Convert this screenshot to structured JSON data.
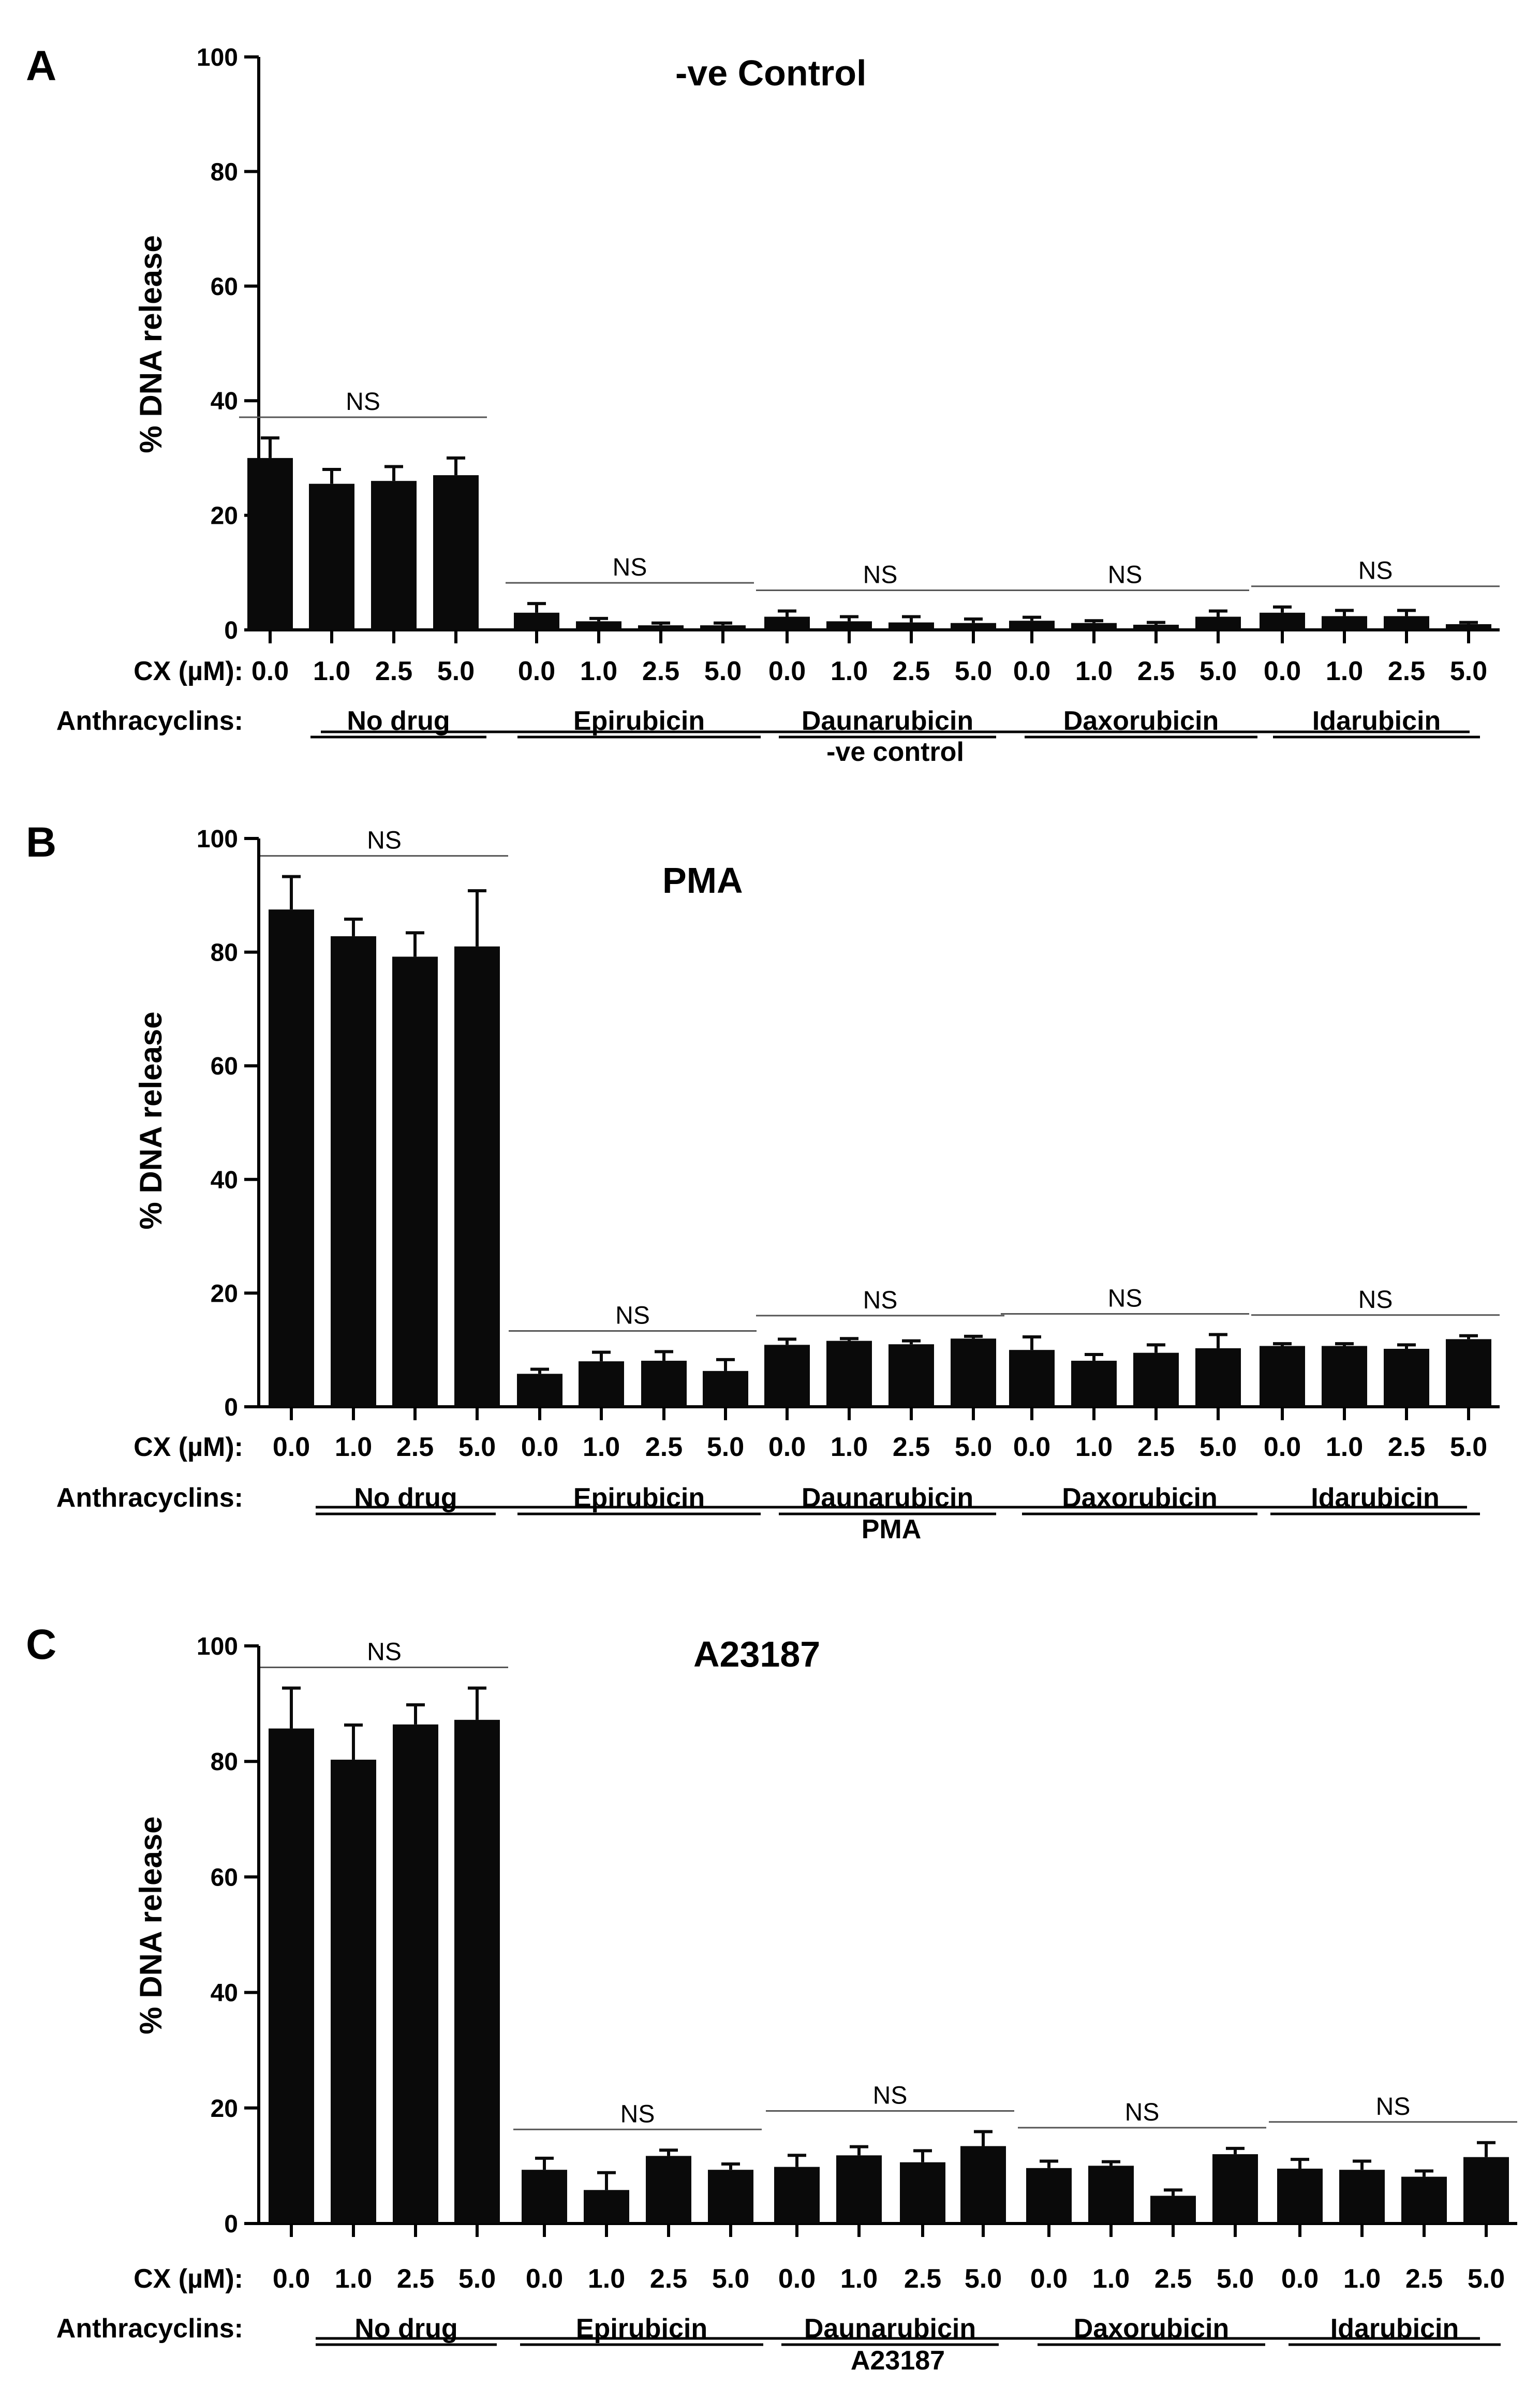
{
  "figure": {
    "cx_label": "CX (µM):",
    "anthracyclins_label": "Anthracyclins:",
    "colors": {
      "bar": "#0a0a0a",
      "axis": "#000000",
      "ns_line": "#555555"
    }
  },
  "chart_data": [
    {
      "type": "bar",
      "panel": "A",
      "title": "-ve Control",
      "ylabel": "% DNA release",
      "xlabel": "",
      "ylim": [
        0,
        100
      ],
      "yticks": [
        0,
        20,
        40,
        60,
        80,
        100
      ],
      "cx_values": [
        "0.0",
        "1.0",
        "2.5",
        "5.0"
      ],
      "groups": [
        "No drug",
        "Epirubicin",
        "Daunarubicin",
        "Daxorubicin",
        "Idarubicin"
      ],
      "treatment_label": "-ve control",
      "significance": [
        "NS",
        "NS",
        "NS",
        "NS",
        "NS"
      ],
      "values": [
        [
          30,
          25.5,
          26,
          27
        ],
        [
          3,
          1.5,
          0.8,
          0.8
        ],
        [
          2.3,
          1.5,
          1.3,
          1.2
        ],
        [
          1.6,
          1.2,
          0.9,
          2.3
        ],
        [
          3,
          2.4,
          2.4,
          1
        ]
      ],
      "errors": [
        [
          3.5,
          2.5,
          2.5,
          3
        ],
        [
          1.6,
          0.5,
          0.4,
          0.4
        ],
        [
          1,
          0.8,
          1,
          0.7
        ],
        [
          0.6,
          0.4,
          0.4,
          1
        ],
        [
          1,
          1,
          1,
          0.3
        ]
      ]
    },
    {
      "type": "bar",
      "panel": "B",
      "title": "PMA",
      "ylabel": "% DNA release",
      "xlabel": "",
      "ylim": [
        0,
        100
      ],
      "yticks": [
        0,
        20,
        40,
        60,
        80,
        100
      ],
      "cx_values": [
        "0.0",
        "1.0",
        "2.5",
        "5.0"
      ],
      "groups": [
        "No drug",
        "Epirubicin",
        "Daunarubicin",
        "Daxorubicin",
        "Idarubicin"
      ],
      "treatment_label": "PMA",
      "significance": [
        "NS",
        "NS",
        "NS",
        "NS",
        "NS"
      ],
      "values": [
        [
          87.5,
          82.8,
          79.2,
          81
        ],
        [
          5.8,
          8,
          8.1,
          6.3
        ],
        [
          10.9,
          11.6,
          11,
          12
        ],
        [
          10,
          8.1,
          9.5,
          10.3
        ],
        [
          10.7,
          10.7,
          10.2,
          11.9
        ]
      ],
      "errors": [
        [
          5.8,
          3,
          4.2,
          9.8
        ],
        [
          0.8,
          1.6,
          1.6,
          2
        ],
        [
          1,
          0.4,
          0.6,
          0.4
        ],
        [
          2.3,
          1.1,
          1.4,
          2.4
        ],
        [
          0.4,
          0.4,
          0.7,
          0.6
        ]
      ]
    },
    {
      "type": "bar",
      "panel": "C",
      "title": "A23187",
      "ylabel": "% DNA release",
      "xlabel": "",
      "ylim": [
        0,
        100
      ],
      "yticks": [
        0,
        20,
        40,
        60,
        80,
        100
      ],
      "cx_values": [
        "0.0",
        "1.0",
        "2.5",
        "5.0"
      ],
      "groups": [
        "No drug",
        "Epirubicin",
        "Daunarubicin",
        "Daxorubicin",
        "Idarubicin"
      ],
      "treatment_label": "A23187",
      "significance": [
        "NS",
        "NS",
        "NS",
        "NS",
        "NS"
      ],
      "values": [
        [
          85.7,
          80.3,
          86.4,
          87.2
        ],
        [
          9.3,
          5.8,
          11.7,
          9.3
        ],
        [
          9.8,
          11.8,
          10.6,
          13.4
        ],
        [
          9.6,
          10,
          4.8,
          12
        ],
        [
          9.5,
          9.3,
          8.1,
          11.5
        ]
      ],
      "errors": [
        [
          7,
          6,
          3.4,
          5.5
        ],
        [
          2,
          3,
          1,
          1
        ],
        [
          2,
          1.5,
          2,
          2.5
        ],
        [
          1.2,
          0.7,
          1,
          1
        ],
        [
          1.6,
          1.5,
          1,
          2.5
        ]
      ]
    }
  ]
}
